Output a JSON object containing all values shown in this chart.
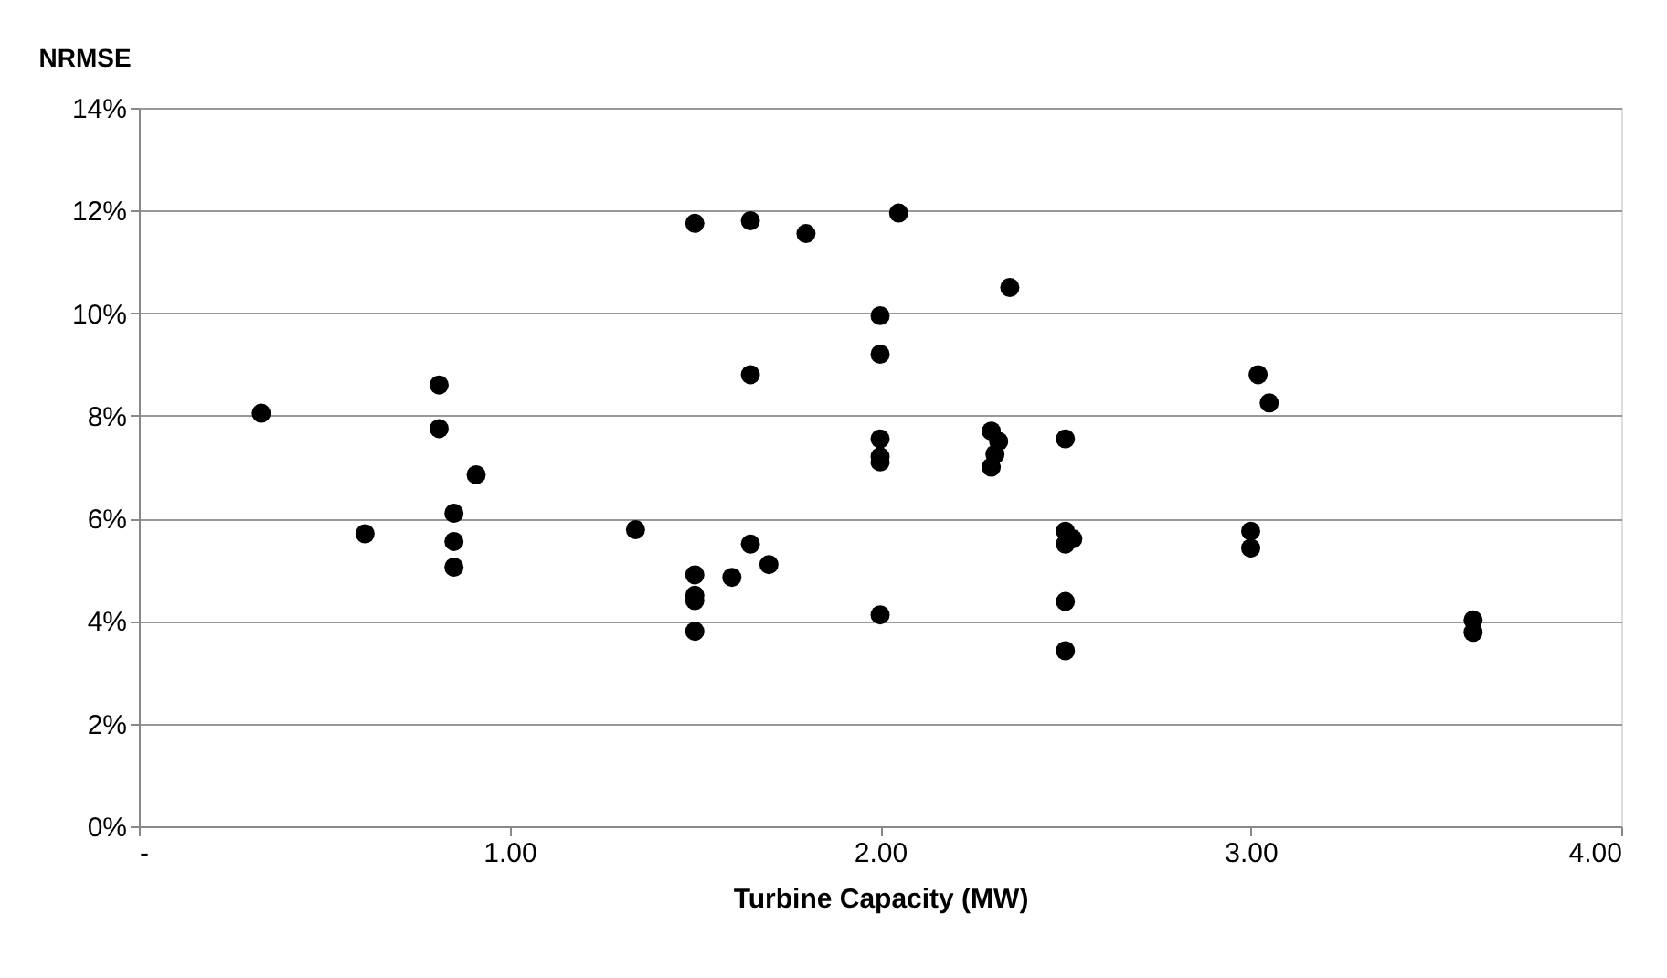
{
  "chart_data": {
    "type": "scatter",
    "xlabel": "Turbine Capacity (MW)",
    "ylabel": "NRMSE",
    "x": [
      0.33,
      0.61,
      0.81,
      0.81,
      0.91,
      0.85,
      0.85,
      0.85,
      1.34,
      1.5,
      1.5,
      1.5,
      1.5,
      1.5,
      1.6,
      1.65,
      1.65,
      1.65,
      1.7,
      1.8,
      2.0,
      2.0,
      2.0,
      2.0,
      2.0,
      2.0,
      2.05,
      2.3,
      2.32,
      2.31,
      2.3,
      2.35,
      2.5,
      2.5,
      2.52,
      2.5,
      2.5,
      2.5,
      3.0,
      3.0,
      3.02,
      3.05,
      3.6,
      3.6
    ],
    "series": [
      {
        "color": "#000000",
        "values": [
          8.05,
          5.7,
          8.6,
          7.75,
          6.85,
          6.1,
          5.55,
          5.05,
          5.78,
          11.75,
          4.9,
          4.5,
          4.4,
          3.8,
          4.85,
          11.8,
          8.8,
          5.5,
          5.1,
          11.55,
          9.95,
          9.2,
          7.55,
          7.2,
          7.1,
          4.12,
          11.95,
          7.7,
          7.5,
          7.25,
          7.0,
          10.5,
          7.55,
          5.75,
          5.6,
          5.5,
          4.38,
          3.42,
          5.75,
          5.42,
          8.8,
          8.25,
          4.02,
          3.78
        ]
      }
    ],
    "xlim": [
      0,
      4
    ],
    "xticks": [
      {
        "value": 0,
        "label": "-"
      },
      {
        "value": 1,
        "label": "1.00"
      },
      {
        "value": 2,
        "label": "2.00"
      },
      {
        "value": 3,
        "label": "3.00"
      },
      {
        "value": 4,
        "label": "4.00"
      }
    ],
    "ylim": [
      0,
      14
    ],
    "yticks": [
      {
        "value": 0,
        "label": "0%"
      },
      {
        "value": 2,
        "label": "2%"
      },
      {
        "value": 4,
        "label": "4%"
      },
      {
        "value": 6,
        "label": "6%"
      },
      {
        "value": 8,
        "label": "8%"
      },
      {
        "value": 10,
        "label": "10%"
      },
      {
        "value": 12,
        "label": "12%"
      },
      {
        "value": 14,
        "label": "14%"
      }
    ],
    "grid": "y",
    "marker": "circle"
  }
}
